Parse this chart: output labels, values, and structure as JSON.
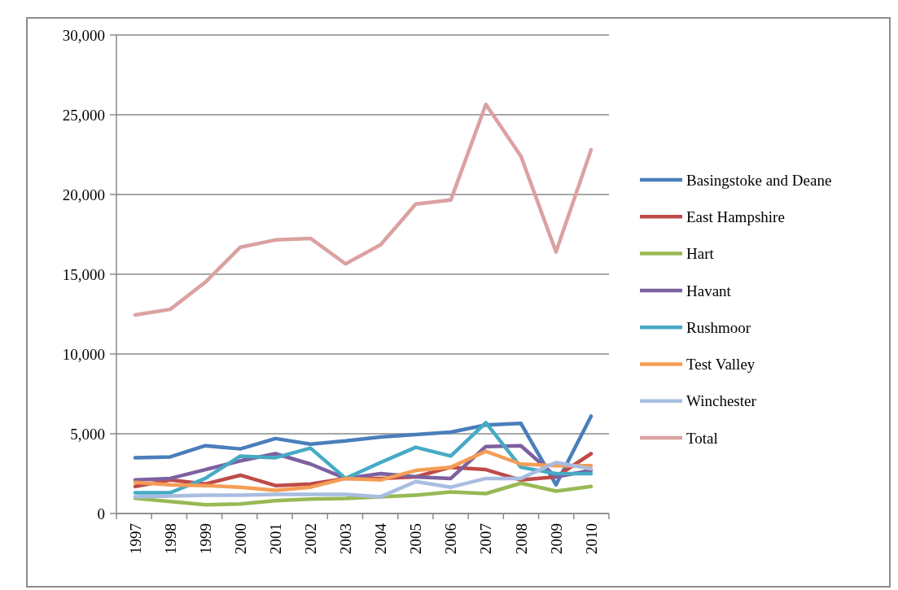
{
  "chart_data": {
    "type": "line",
    "categories": [
      "1997",
      "1998",
      "1999",
      "2000",
      "2001",
      "2002",
      "2003",
      "2004",
      "2005",
      "2006",
      "2007",
      "2008",
      "2009",
      "2010"
    ],
    "series": [
      {
        "name": "Basingstoke and Deane",
        "color": "#4a7ebb",
        "values": [
          3500,
          3550,
          4250,
          4050,
          4700,
          4350,
          4550,
          4800,
          4950,
          5100,
          5550,
          5650,
          1800,
          6100
        ]
      },
      {
        "name": "East Hampshire",
        "color": "#be4b48",
        "values": [
          1700,
          2100,
          1850,
          2400,
          1750,
          1850,
          2200,
          2200,
          2300,
          2900,
          2750,
          2100,
          2300,
          3750
        ]
      },
      {
        "name": "Hart",
        "color": "#98b954",
        "values": [
          950,
          750,
          550,
          600,
          800,
          900,
          950,
          1050,
          1150,
          1350,
          1250,
          1900,
          1400,
          1700
        ]
      },
      {
        "name": "Havant",
        "color": "#7d60a0",
        "values": [
          2100,
          2200,
          2750,
          3300,
          3750,
          3100,
          2200,
          2500,
          2300,
          2200,
          4200,
          4250,
          2300,
          2700
        ]
      },
      {
        "name": "Rushmoor",
        "color": "#46aac5",
        "values": [
          1300,
          1300,
          2200,
          3600,
          3500,
          4100,
          2200,
          3200,
          4150,
          3600,
          5700,
          2900,
          2500,
          2500
        ]
      },
      {
        "name": "Test Valley",
        "color": "#f59d56",
        "values": [
          1950,
          1800,
          1750,
          1650,
          1450,
          1650,
          2200,
          2100,
          2700,
          2900,
          3900,
          3100,
          3000,
          3000
        ]
      },
      {
        "name": "Winchester",
        "color": "#a8bde0",
        "values": [
          1050,
          1100,
          1150,
          1150,
          1200,
          1200,
          1200,
          1050,
          2000,
          1650,
          2200,
          2200,
          3200,
          2800
        ]
      },
      {
        "name": "Total",
        "color": "#dba1a0",
        "values": [
          12450,
          12800,
          14500,
          16700,
          17150,
          17250,
          15650,
          16850,
          19400,
          19650,
          25650,
          22400,
          16400,
          22800
        ]
      }
    ],
    "ylim": [
      0,
      30000
    ],
    "yticks": [
      {
        "value": 0,
        "label": "0"
      },
      {
        "value": 5000,
        "label": "5,000"
      },
      {
        "value": 10000,
        "label": "10,000"
      },
      {
        "value": 15000,
        "label": "15,000"
      },
      {
        "value": 20000,
        "label": "20,000"
      },
      {
        "value": 25000,
        "label": "25,000"
      },
      {
        "value": 30000,
        "label": "30,000"
      }
    ],
    "grid": "y",
    "legend": "right",
    "marker": "none",
    "line_style": "solid"
  }
}
